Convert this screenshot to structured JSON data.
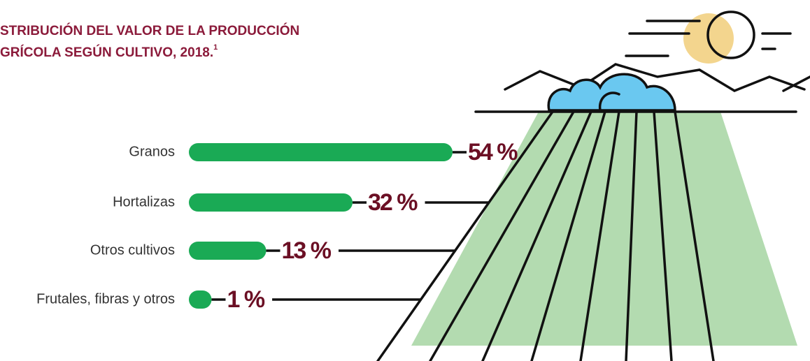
{
  "chart_data": {
    "type": "bar",
    "title": [
      "STRIBUCIÓN DEL VALOR DE LA PRODUCCIÓN",
      "GRÍCOLA SEGÚN CULTIVO, 2018."
    ],
    "title_superscript": "1",
    "categories": [
      "Granos",
      "Hortalizas",
      "Otros cultivos",
      "Frutales, fibras y otros"
    ],
    "values": [
      54,
      32,
      13,
      1
    ],
    "value_labels": [
      "54 %",
      "32 %",
      "13 %",
      "1 %"
    ],
    "color": "#1aaa55"
  }
}
